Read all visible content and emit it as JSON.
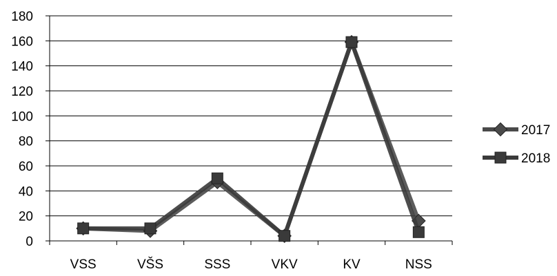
{
  "chart_data": {
    "type": "line",
    "categories": [
      "VSS",
      "VŠS",
      "SSS",
      "VKV",
      "KV",
      "NSS"
    ],
    "series": [
      {
        "name": "2017",
        "marker": "diamond",
        "color": "#4a4a4a",
        "values": [
          10,
          8,
          47,
          4,
          159,
          16
        ]
      },
      {
        "name": "2018",
        "marker": "square",
        "color": "#3a3a3a",
        "values": [
          10,
          10,
          50,
          4,
          159,
          7
        ]
      }
    ],
    "y_ticks": [
      0,
      20,
      40,
      60,
      80,
      100,
      120,
      140,
      160,
      180
    ],
    "ylim": [
      0,
      180
    ],
    "grid": true,
    "legend_position": "right",
    "title": "",
    "xlabel": "",
    "ylabel": ""
  }
}
